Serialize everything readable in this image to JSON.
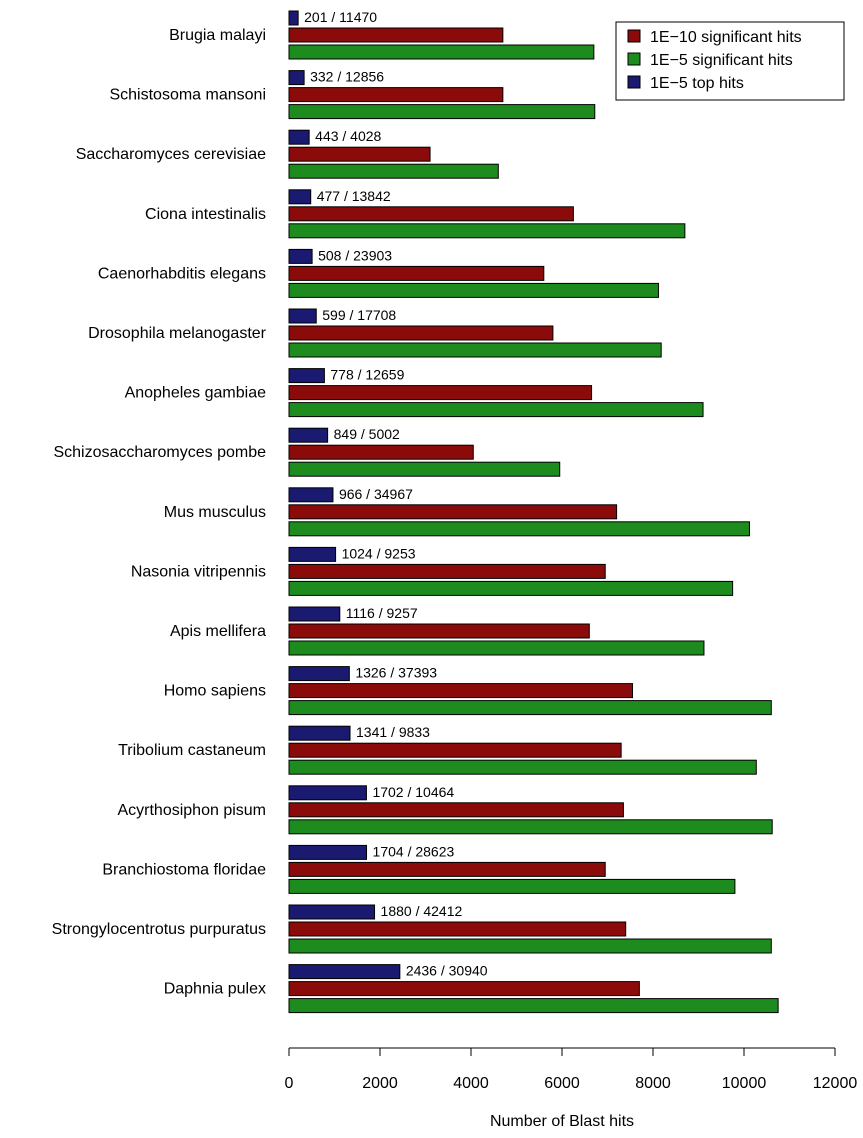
{
  "chart_data": {
    "type": "bar",
    "orientation": "horizontal",
    "title": "",
    "xlabel": "Number of Blast hits",
    "ylabel": "",
    "xlim": [
      0,
      12000
    ],
    "xticks": [
      0,
      2000,
      4000,
      6000,
      8000,
      10000,
      12000
    ],
    "grid": false,
    "legend_position": "top-right",
    "categories": [
      "Brugia malayi",
      "Schistosoma mansoni",
      "Saccharomyces cerevisiae",
      "Ciona intestinalis",
      "Caenorhabditis elegans",
      "Drosophila melanogaster",
      "Anopheles gambiae",
      "Schizosaccharomyces pombe",
      "Mus musculus",
      "Nasonia vitripennis",
      "Apis mellifera",
      "Homo sapiens",
      "Tribolium castaneum",
      "Acyrthosiphon pisum",
      "Branchiostoma floridae",
      "Strongylocentrotus purpuratus",
      "Daphnia pulex"
    ],
    "series": [
      {
        "name": "1E−10 significant hits",
        "color": "#8b0a0a",
        "values": [
          4700,
          4700,
          3100,
          6250,
          5600,
          5800,
          6650,
          4050,
          7200,
          6950,
          6600,
          7550,
          7300,
          7350,
          6950,
          7400,
          7700
        ]
      },
      {
        "name": "1E−5 significant hits",
        "color": "#1e8b1e",
        "values": [
          6700,
          6720,
          4600,
          8700,
          8120,
          8180,
          9100,
          5950,
          10120,
          9750,
          9120,
          10600,
          10270,
          10620,
          9800,
          10600,
          10750
        ]
      },
      {
        "name": "1E−5 top hits",
        "color": "#1a1a70",
        "values": [
          201,
          332,
          443,
          477,
          508,
          599,
          778,
          849,
          966,
          1024,
          1116,
          1326,
          1341,
          1702,
          1704,
          1880,
          2436
        ]
      }
    ],
    "bar_labels": [
      "201 / 11470",
      "332 / 12856",
      "443 / 4028",
      "477 / 13842",
      "508 / 23903",
      "599 / 17708",
      "778 / 12659",
      "849 / 5002",
      "966 / 34967",
      "1024 / 9253",
      "1116 / 9257",
      "1326 / 37393",
      "1341 / 9833",
      "1702 / 10464",
      "1704 / 28623",
      "1880 / 42412",
      "2436 / 30940"
    ]
  }
}
